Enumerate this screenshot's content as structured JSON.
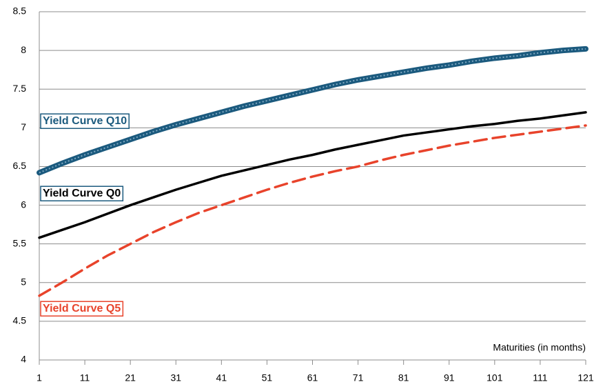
{
  "chart_data": {
    "type": "line",
    "x_label": "Maturities (in months)",
    "x": [
      1,
      6,
      11,
      16,
      21,
      26,
      31,
      36,
      41,
      46,
      51,
      56,
      61,
      66,
      71,
      76,
      81,
      86,
      91,
      96,
      101,
      106,
      111,
      116,
      121
    ],
    "series": [
      {
        "name": "Yield Curve Q10",
        "color": "#1b5a7e",
        "line_style": "solid",
        "values": [
          6.42,
          6.54,
          6.65,
          6.75,
          6.85,
          6.95,
          7.04,
          7.12,
          7.2,
          7.28,
          7.35,
          7.42,
          7.49,
          7.56,
          7.62,
          7.67,
          7.72,
          7.77,
          7.81,
          7.86,
          7.9,
          7.93,
          7.97,
          8.0,
          8.02
        ]
      },
      {
        "name": "Yield Curve Q0",
        "color": "#000000",
        "line_style": "solid",
        "values": [
          5.58,
          5.68,
          5.78,
          5.89,
          6.0,
          6.1,
          6.2,
          6.29,
          6.38,
          6.45,
          6.52,
          6.59,
          6.65,
          6.72,
          6.78,
          6.84,
          6.9,
          6.94,
          6.98,
          7.02,
          7.05,
          7.09,
          7.12,
          7.16,
          7.2
        ]
      },
      {
        "name": "Yield Curve Q5",
        "color": "#e8432b",
        "line_style": "dashed",
        "values": [
          4.83,
          5.0,
          5.18,
          5.35,
          5.5,
          5.65,
          5.78,
          5.9,
          6.0,
          6.1,
          6.2,
          6.29,
          6.37,
          6.44,
          6.5,
          6.58,
          6.65,
          6.71,
          6.77,
          6.82,
          6.87,
          6.91,
          6.95,
          6.99,
          7.03
        ]
      }
    ],
    "xlim": [
      1,
      121
    ],
    "xticks": [
      1,
      11,
      21,
      31,
      41,
      51,
      61,
      71,
      81,
      91,
      101,
      111,
      121
    ],
    "ylim": [
      4,
      8.5
    ],
    "yticks": [
      4,
      4.5,
      5,
      5.5,
      6,
      6.5,
      7,
      7.5,
      8,
      8.5
    ],
    "grid": true
  }
}
